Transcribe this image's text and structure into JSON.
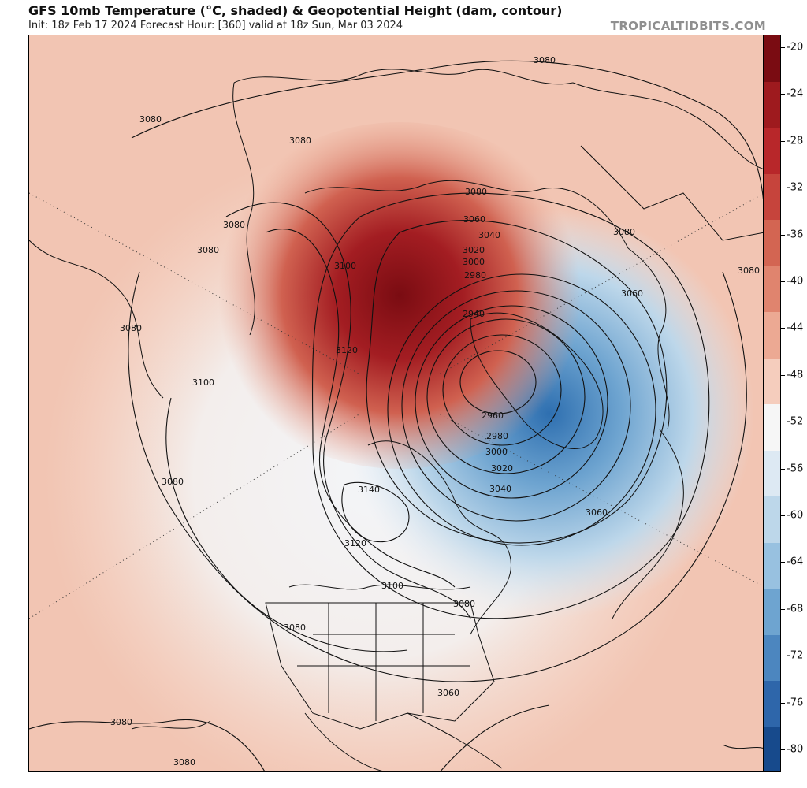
{
  "header": {
    "title": "GFS 10mb Temperature (°C, shaded) & Geopotential Height (dam, contour)",
    "subtitle": "Init: 18z Feb 17 2024   Forecast Hour: [360]   valid at 18z Sun, Mar 03 2024",
    "brand": "TROPICALTIDBITS.COM"
  },
  "colorbar": {
    "labels": [
      "-20",
      "-24",
      "-28",
      "-32",
      "-36",
      "-40",
      "-44",
      "-48",
      "-52",
      "-56",
      "-60",
      "-64",
      "-68",
      "-72",
      "-76",
      "-80"
    ],
    "colors": [
      "#7a0c12",
      "#9e1a1e",
      "#b8272a",
      "#c6443c",
      "#d36552",
      "#e0846e",
      "#eca993",
      "#f5cdbd",
      "#f6f6f6",
      "#dde9f3",
      "#bdd7ea",
      "#98c1e0",
      "#6ea4d0",
      "#4c86bf",
      "#2e66aa",
      "#174a8c"
    ]
  },
  "map": {
    "contours": [
      {
        "label": "3080",
        "key": "c1"
      },
      {
        "label": "3080",
        "key": "c2"
      },
      {
        "label": "3080",
        "key": "c3"
      },
      {
        "label": "3080",
        "key": "c4"
      },
      {
        "label": "3080",
        "key": "c5"
      },
      {
        "label": "3080",
        "key": "c6"
      },
      {
        "label": "3080",
        "key": "c7"
      },
      {
        "label": "3080",
        "key": "c8"
      },
      {
        "label": "3080",
        "key": "c9"
      },
      {
        "label": "3080",
        "key": "c10"
      },
      {
        "label": "3080",
        "key": "c11"
      },
      {
        "label": "3080",
        "key": "c12"
      },
      {
        "label": "3080",
        "key": "c13"
      },
      {
        "label": "3080",
        "key": "c14"
      },
      {
        "label": "3080",
        "key": "c15"
      },
      {
        "label": "3060",
        "key": "c16"
      },
      {
        "label": "3060",
        "key": "c17"
      },
      {
        "label": "3060",
        "key": "c18"
      },
      {
        "label": "3060",
        "key": "c19"
      },
      {
        "label": "3040",
        "key": "c20"
      },
      {
        "label": "3040",
        "key": "c21"
      },
      {
        "label": "3020",
        "key": "c22"
      },
      {
        "label": "3020",
        "key": "c23"
      },
      {
        "label": "3000",
        "key": "c24"
      },
      {
        "label": "3000",
        "key": "c25"
      },
      {
        "label": "2980",
        "key": "c26"
      },
      {
        "label": "2980",
        "key": "c27"
      },
      {
        "label": "2960",
        "key": "c28"
      },
      {
        "label": "2940",
        "key": "c29"
      },
      {
        "label": "3100",
        "key": "c30"
      },
      {
        "label": "3100",
        "key": "c31"
      },
      {
        "label": "3100",
        "key": "c32"
      },
      {
        "label": "3120",
        "key": "c33"
      },
      {
        "label": "3120",
        "key": "c34"
      },
      {
        "label": "3140",
        "key": "c35"
      }
    ]
  }
}
